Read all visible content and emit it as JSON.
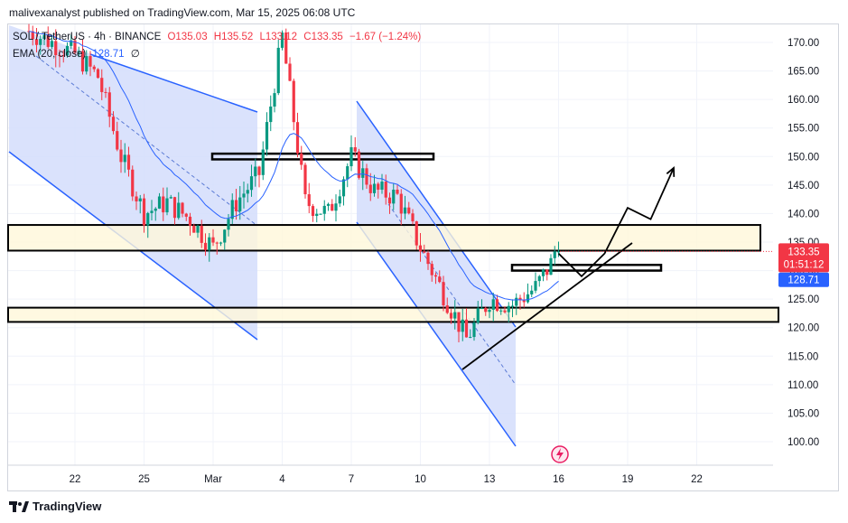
{
  "header": {
    "publisher": "malivexanalyst published on TradingView.com, Mar 15, 2025 06:08 UTC"
  },
  "legend": {
    "symbol": "SOL / TetherUS · 4h · BINANCE",
    "o": "O135.03",
    "h": "H135.52",
    "l": "L133.12",
    "c": "C133.35",
    "change": "−1.67 (−1.24%)",
    "ema_label": "EMA (20, close)",
    "ema_value": "128.71",
    "ema_extra": "∅"
  },
  "price_scale": {
    "ticks": [
      "170.00",
      "165.00",
      "160.00",
      "155.00",
      "150.00",
      "145.00",
      "140.00",
      "135.00",
      "130.00",
      "125.00",
      "120.00",
      "115.00",
      "110.00",
      "105.00",
      "100.00"
    ],
    "last_price": "133.35",
    "countdown": "01:51:12",
    "ema_price": "128.71"
  },
  "time_scale": {
    "ticks": [
      "22",
      "25",
      "Mar",
      "4",
      "7",
      "10",
      "13",
      "16",
      "19",
      "22"
    ]
  },
  "footer": {
    "brand": "TradingView"
  },
  "colors": {
    "up": "#089981",
    "down": "#f23645",
    "ema": "#2962ff",
    "channel_fill": "#d4ddfb",
    "channel_line": "#2962ff",
    "zone_fill": "#fff8d9",
    "zone_border": "#000000",
    "last_price_bg": "#f23645",
    "ema_label_bg": "#2962ff"
  },
  "chart_data": {
    "type": "candlestick",
    "title": "SOL / TetherUS · 4h · BINANCE",
    "x_dates": [
      "Feb 22",
      "Feb 25",
      "Mar 1",
      "Mar 4",
      "Mar 7",
      "Mar 10",
      "Mar 13",
      "Mar 16",
      "Mar 19",
      "Mar 22"
    ],
    "ylim": [
      98,
      174
    ],
    "close_path": [
      [
        "Feb 20",
        172
      ],
      [
        "Feb 21",
        170
      ],
      [
        "Feb 22",
        168
      ],
      [
        "Feb 23",
        164
      ],
      [
        "Feb 24",
        150
      ],
      [
        "Feb 25",
        140
      ],
      [
        "Feb 26",
        142
      ],
      [
        "Feb 27",
        139
      ],
      [
        "Feb 28",
        134
      ],
      [
        "Mar 1",
        142
      ],
      [
        "Mar 2",
        147
      ],
      [
        "Mar 3",
        171
      ],
      [
        "Mar 4",
        142
      ],
      [
        "Mar 5",
        140
      ],
      [
        "Mar 6",
        150
      ],
      [
        "Mar 7",
        144
      ],
      [
        "Mar 8",
        143
      ],
      [
        "Mar 9",
        134
      ],
      [
        "Mar 10",
        126
      ],
      [
        "Mar 11",
        118
      ],
      [
        "Mar 12",
        125
      ],
      [
        "Mar 13",
        124
      ],
      [
        "Mar 14",
        127
      ],
      [
        "Mar 15",
        133.35
      ]
    ],
    "ema_20_last": 128.71,
    "last_price": 133.35,
    "zones": [
      {
        "name": "upper resistance zone",
        "from": 133.5,
        "to": 138
      },
      {
        "name": "lower support zone",
        "from": 121,
        "to": 123.5
      },
      {
        "name": "upper level box",
        "from": 149.5,
        "to": 150.5
      },
      {
        "name": "retest box",
        "from": 130,
        "to": 131
      }
    ],
    "projection": [
      [
        "Mar 15",
        133
      ],
      [
        "Mar 16",
        129
      ],
      [
        "Mar 17",
        133
      ],
      [
        "Mar 18",
        141
      ],
      [
        "Mar 19",
        139
      ],
      [
        "Mar 20",
        148
      ]
    ]
  }
}
